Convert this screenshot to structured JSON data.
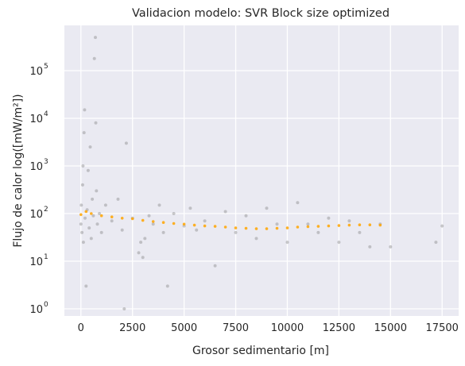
{
  "chart_data": {
    "type": "scatter",
    "title": "Validacion modelo: SVR Block size optimized",
    "xlabel": "Grosor sedimentario [m]",
    "ylabel": "Flujo de calor log([mW/m²])",
    "xlim": [
      -800,
      18300
    ],
    "ylim_log10": [
      -0.15,
      5.95
    ],
    "yscale": "log",
    "grid": true,
    "x_ticks": [
      "0",
      "2500",
      "5000",
      "7500",
      "10000",
      "12500",
      "15000",
      "17500"
    ],
    "x_tick_values": [
      0,
      2500,
      5000,
      7500,
      10000,
      12500,
      15000,
      17500
    ],
    "y_ticks": [
      {
        "base": "10",
        "exp": "0",
        "value": 1
      },
      {
        "base": "10",
        "exp": "1",
        "value": 10
      },
      {
        "base": "10",
        "exp": "2",
        "value": 100
      },
      {
        "base": "10",
        "exp": "3",
        "value": 1000
      },
      {
        "base": "10",
        "exp": "4",
        "value": 10000
      },
      {
        "base": "10",
        "exp": "5",
        "value": 100000
      }
    ],
    "series": [
      {
        "color": "#808080",
        "points": [
          [
            0,
            60
          ],
          [
            20,
            150
          ],
          [
            50,
            40
          ],
          [
            80,
            400
          ],
          [
            100,
            1000
          ],
          [
            120,
            25
          ],
          [
            150,
            5000
          ],
          [
            180,
            15000
          ],
          [
            200,
            80
          ],
          [
            250,
            3
          ],
          [
            300,
            120
          ],
          [
            350,
            800
          ],
          [
            400,
            50
          ],
          [
            450,
            2500
          ],
          [
            500,
            30
          ],
          [
            550,
            200
          ],
          [
            600,
            90
          ],
          [
            650,
            180000
          ],
          [
            700,
            500000
          ],
          [
            720,
            8000
          ],
          [
            750,
            300
          ],
          [
            800,
            60
          ],
          [
            900,
            100
          ],
          [
            1000,
            40
          ],
          [
            1200,
            150
          ],
          [
            1500,
            70
          ],
          [
            1800,
            200
          ],
          [
            2000,
            45
          ],
          [
            2100,
            1
          ],
          [
            2200,
            3000
          ],
          [
            2500,
            80
          ],
          [
            2800,
            15
          ],
          [
            2900,
            25
          ],
          [
            3000,
            12
          ],
          [
            3100,
            30
          ],
          [
            3300,
            90
          ],
          [
            3500,
            60
          ],
          [
            3800,
            150
          ],
          [
            4000,
            40
          ],
          [
            4200,
            3
          ],
          [
            4500,
            100
          ],
          [
            5000,
            55
          ],
          [
            5300,
            130
          ],
          [
            5600,
            45
          ],
          [
            6000,
            70
          ],
          [
            6500,
            8
          ],
          [
            7000,
            110
          ],
          [
            7500,
            40
          ],
          [
            8000,
            90
          ],
          [
            8500,
            30
          ],
          [
            9000,
            130
          ],
          [
            9500,
            60
          ],
          [
            10000,
            25
          ],
          [
            10500,
            170
          ],
          [
            11000,
            60
          ],
          [
            11500,
            40
          ],
          [
            12000,
            80
          ],
          [
            12500,
            25
          ],
          [
            13000,
            70
          ],
          [
            13500,
            40
          ],
          [
            14000,
            20
          ],
          [
            14500,
            60
          ],
          [
            15000,
            20
          ],
          [
            17200,
            25
          ],
          [
            17500,
            55
          ]
        ]
      },
      {
        "color": "#ffa500",
        "points": [
          [
            0,
            95
          ],
          [
            250,
            110
          ],
          [
            500,
            100
          ],
          [
            1000,
            90
          ],
          [
            1500,
            85
          ],
          [
            2000,
            80
          ],
          [
            2500,
            78
          ],
          [
            3000,
            72
          ],
          [
            3500,
            68
          ],
          [
            4000,
            65
          ],
          [
            4500,
            62
          ],
          [
            5000,
            60
          ],
          [
            5500,
            57
          ],
          [
            6000,
            55
          ],
          [
            6500,
            54
          ],
          [
            7000,
            52
          ],
          [
            7500,
            50
          ],
          [
            8000,
            49
          ],
          [
            8500,
            48
          ],
          [
            9000,
            48
          ],
          [
            9500,
            49
          ],
          [
            10000,
            50
          ],
          [
            10500,
            52
          ],
          [
            11000,
            53
          ],
          [
            11500,
            54
          ],
          [
            12000,
            55
          ],
          [
            12500,
            56
          ],
          [
            13000,
            57
          ],
          [
            13500,
            58
          ],
          [
            14000,
            58
          ],
          [
            14500,
            57
          ]
        ]
      }
    ]
  }
}
